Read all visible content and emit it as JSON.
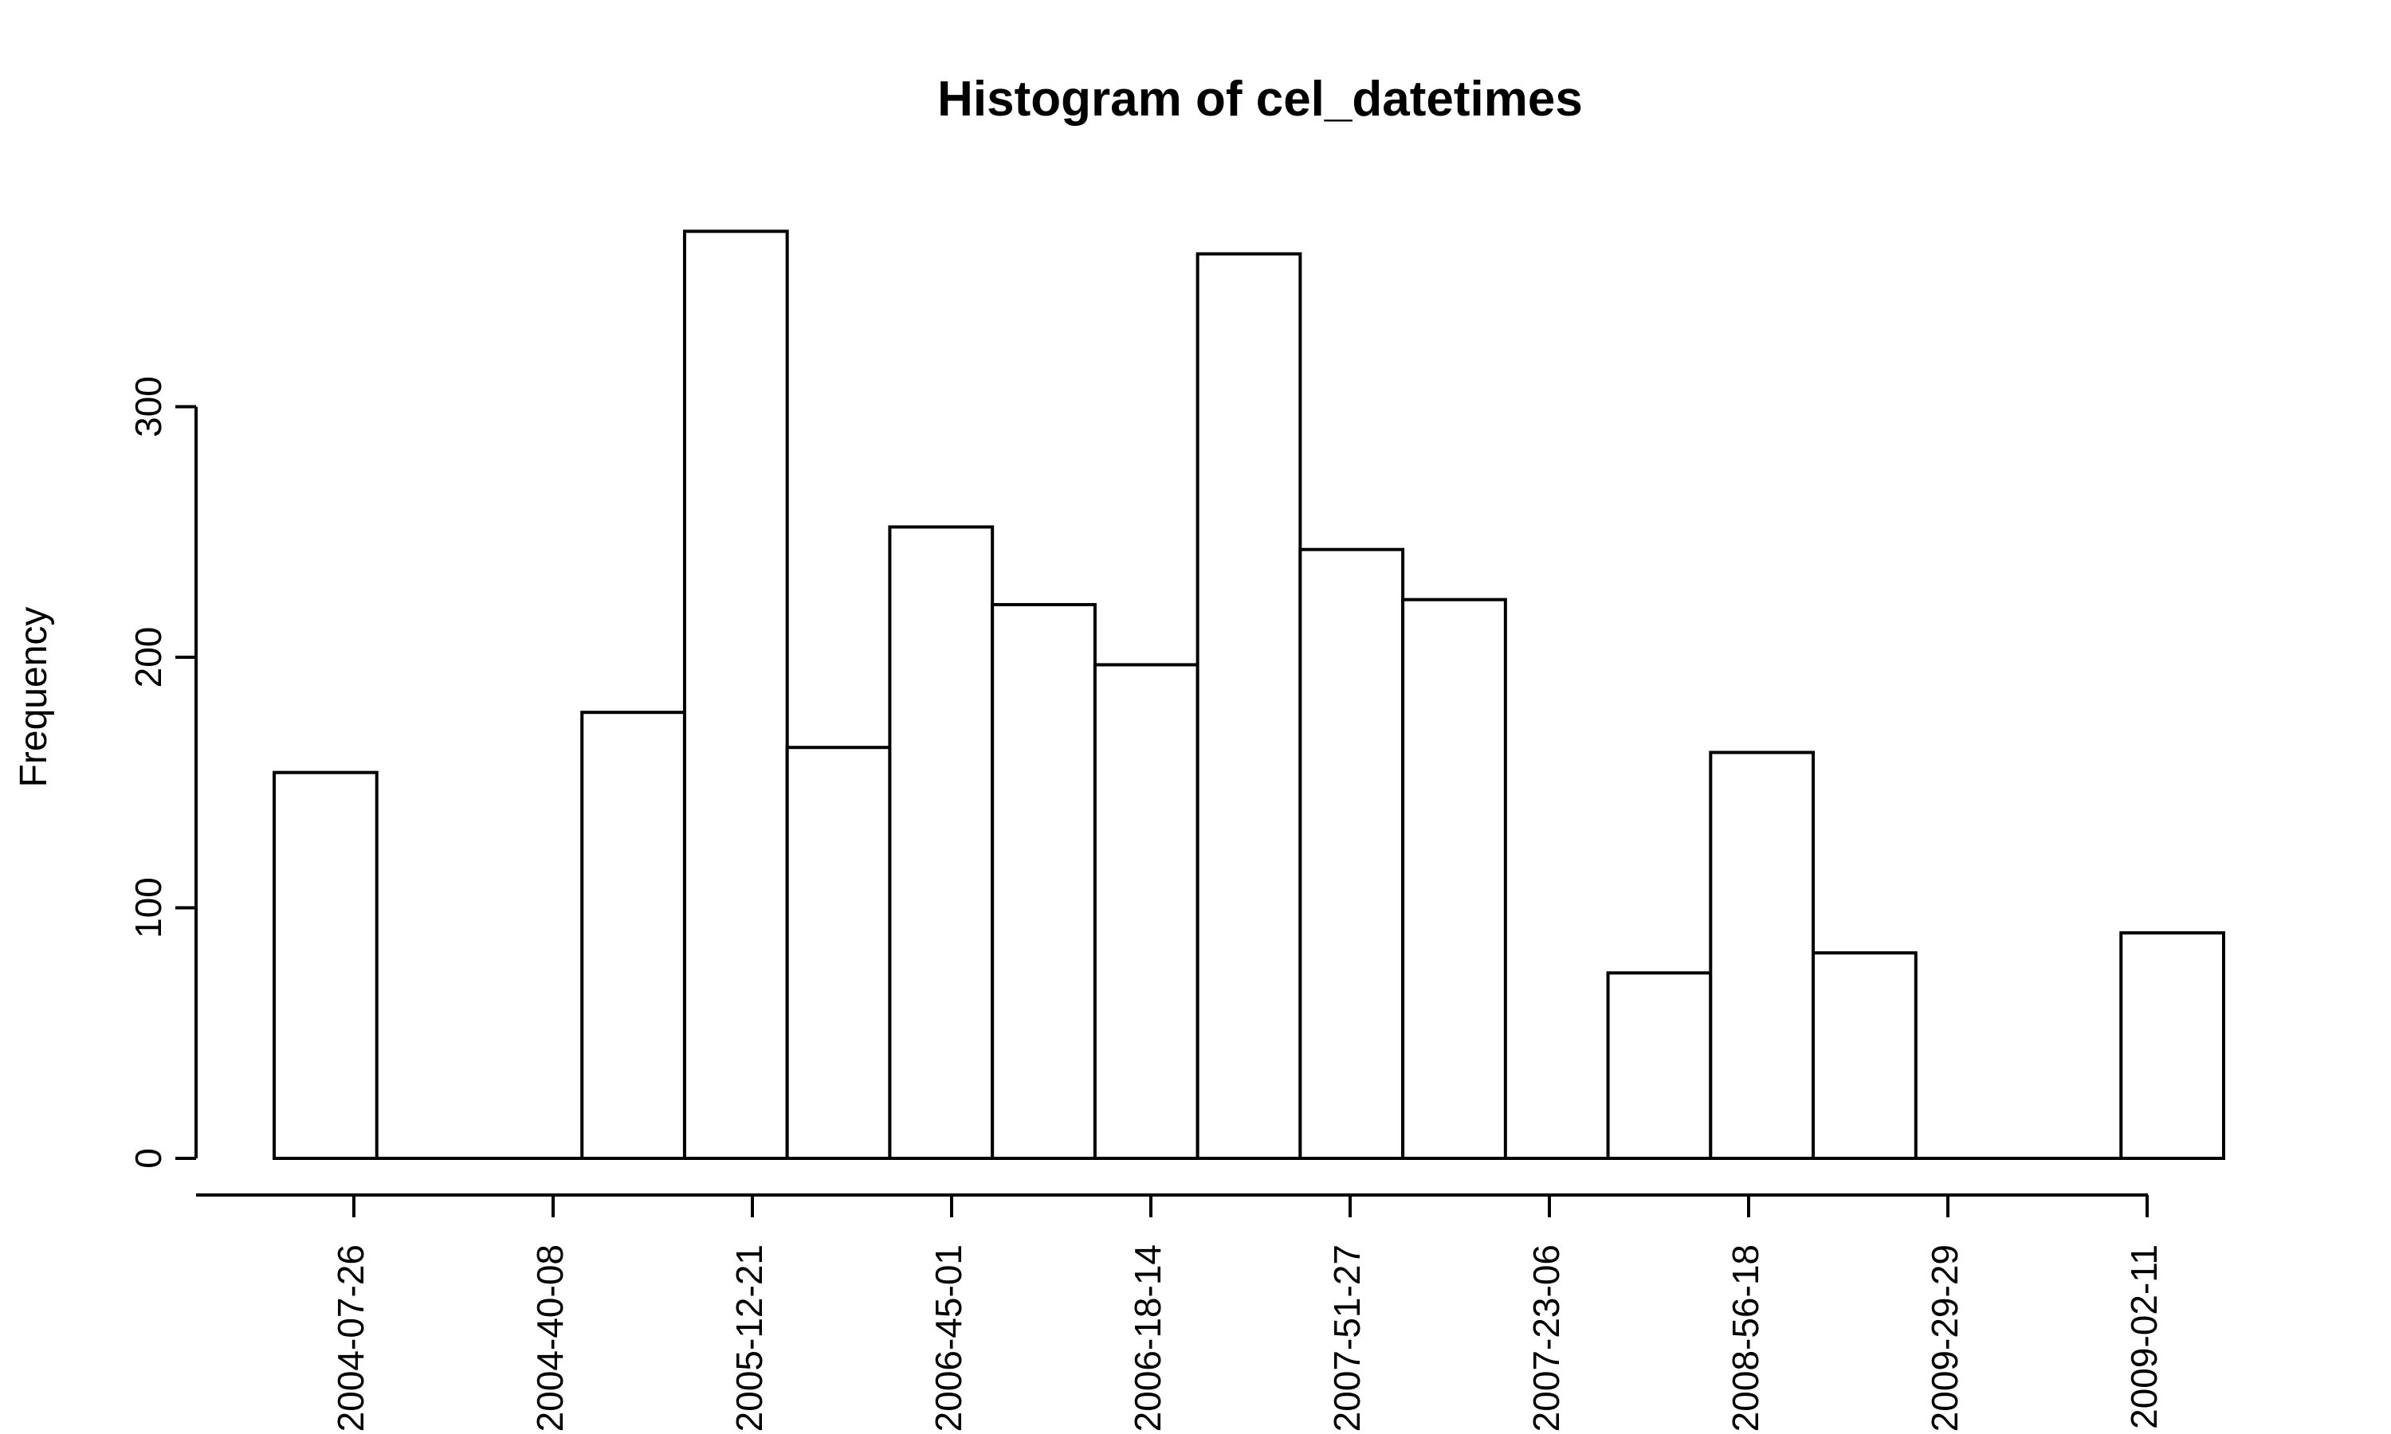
{
  "chart_data": {
    "type": "bar",
    "title": "Histogram of cel_datetimes",
    "xlabel": "",
    "ylabel": "Frequency",
    "ylim": [
      0,
      370
    ],
    "y_ticks": [
      0,
      100,
      200,
      300
    ],
    "x_tick_labels": [
      "2004-07-26",
      "2004-40-08",
      "2005-12-21",
      "2006-45-01",
      "2006-18-14",
      "2007-51-27",
      "2007-23-06",
      "2008-56-18",
      "2009-29-29",
      "2009-02-11"
    ],
    "bins": 19,
    "values": [
      154,
      0,
      0,
      178,
      370,
      164,
      252,
      221,
      197,
      361,
      243,
      223,
      0,
      74,
      162,
      82,
      0,
      0,
      90
    ],
    "grid": false,
    "legend": "none"
  }
}
